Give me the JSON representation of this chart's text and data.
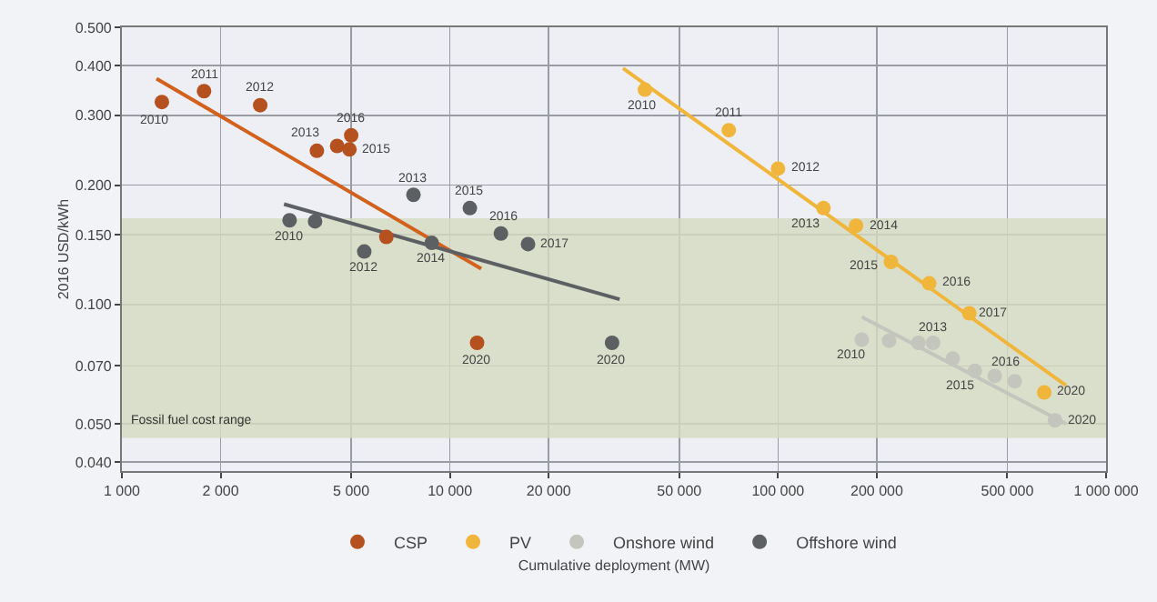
{
  "chart_data": {
    "type": "scatter",
    "xlabel": "Cumulative deployment (MW)",
    "ylabel": "2016 USD/kWh",
    "log": "xy",
    "grid": true,
    "legend": "bottom",
    "marker": "circle",
    "xlim": [
      1000,
      1000000
    ],
    "xticks": [
      {
        "value": 1000,
        "label": "1 000"
      },
      {
        "value": 2000,
        "label": "2 000"
      },
      {
        "value": 5000,
        "label": "5 000"
      },
      {
        "value": 10000,
        "label": "10 000"
      },
      {
        "value": 20000,
        "label": "20 000"
      },
      {
        "value": 50000,
        "label": "50 000"
      },
      {
        "value": 100000,
        "label": "100 000"
      },
      {
        "value": 200000,
        "label": "200 000"
      },
      {
        "value": 500000,
        "label": "500 000"
      },
      {
        "value": 1000000,
        "label": "1 000 000"
      }
    ],
    "ylim": [
      0.038,
      0.5
    ],
    "yticks": [
      {
        "value": 0.04,
        "label": "0.040"
      },
      {
        "value": 0.05,
        "label": "0.050"
      },
      {
        "value": 0.07,
        "label": "0.070"
      },
      {
        "value": 0.1,
        "label": "0.100"
      },
      {
        "value": 0.15,
        "label": "0.150"
      },
      {
        "value": 0.2,
        "label": "0.200"
      },
      {
        "value": 0.3,
        "label": "0.300"
      },
      {
        "value": 0.4,
        "label": "0.400"
      },
      {
        "value": 0.5,
        "label": "0.500"
      }
    ],
    "bands": [
      {
        "axis": "y",
        "from": 0.046,
        "to": 0.165,
        "label": "Fossil fuel cost range",
        "color": "#d5dcc0"
      }
    ],
    "series": [
      {
        "name": "CSP",
        "color": "#b5501f",
        "x": [
          1324,
          1780,
          2640,
          3930,
          4530,
          4940,
          5000,
          6400,
          12100
        ],
        "values": [
          0.324,
          0.345,
          0.318,
          0.244,
          0.251,
          0.246,
          0.267,
          0.148,
          0.08
        ]
      },
      {
        "name": "PV",
        "color": "#f0b63c",
        "x": [
          39300,
          70800,
          100000,
          137600,
          173000,
          221000,
          289000,
          383000,
          648000
        ],
        "values": [
          0.348,
          0.275,
          0.22,
          0.175,
          0.158,
          0.128,
          0.113,
          0.095,
          0.06
        ]
      },
      {
        "name": "Onshore wind",
        "color": "#c4c5bd",
        "x": [
          180000,
          218000,
          268000,
          297000,
          341000,
          398000,
          458000,
          527000,
          699000
        ],
        "values": [
          0.0815,
          0.081,
          0.08,
          0.08,
          0.073,
          0.068,
          0.066,
          0.064,
          0.051
        ]
      },
      {
        "name": "Offshore wind",
        "color": "#5d6062",
        "x": [
          3245,
          3880,
          5480,
          7740,
          8800,
          11500,
          14300,
          17300,
          31200
        ],
        "values": [
          0.163,
          0.162,
          0.136,
          0.189,
          0.143,
          0.175,
          0.151,
          0.142,
          0.08
        ]
      },
      {
        "type": "line",
        "marker": "none",
        "color": "#d2611e",
        "x": [
          1275,
          12450
        ],
        "values": [
          0.371,
          0.123
        ]
      },
      {
        "type": "line",
        "marker": "none",
        "color": "#f0b63c",
        "x": [
          33700,
          755000
        ],
        "values": [
          0.394,
          0.0625
        ]
      },
      {
        "type": "line",
        "marker": "none",
        "color": "#c4c5bd",
        "x": [
          180000,
          755000
        ],
        "values": [
          0.093,
          0.05
        ]
      },
      {
        "type": "line",
        "marker": "none",
        "color": "#5d6062",
        "x": [
          3120,
          32900
        ],
        "values": [
          0.179,
          0.103
        ]
      }
    ],
    "annotations": [
      {
        "text": "2010",
        "x": 1324,
        "y": 0.324
      },
      {
        "text": "2011",
        "x": 1780,
        "y": 0.345
      },
      {
        "text": "2012",
        "x": 2640,
        "y": 0.318
      },
      {
        "text": "2013",
        "x": 3930,
        "y": 0.244
      },
      {
        "text": "2015",
        "x": 4940,
        "y": 0.246
      },
      {
        "text": "2016",
        "x": 5000,
        "y": 0.267
      },
      {
        "text": "2020",
        "x": 12100,
        "y": 0.08
      },
      {
        "text": "2010",
        "x": 3245,
        "y": 0.163
      },
      {
        "text": "2012",
        "x": 5480,
        "y": 0.136
      },
      {
        "text": "2013",
        "x": 7740,
        "y": 0.189
      },
      {
        "text": "2014",
        "x": 8800,
        "y": 0.143
      },
      {
        "text": "2015",
        "x": 11500,
        "y": 0.175
      },
      {
        "text": "2016",
        "x": 14300,
        "y": 0.151
      },
      {
        "text": "2017",
        "x": 17300,
        "y": 0.142
      },
      {
        "text": "2020",
        "x": 31200,
        "y": 0.08
      },
      {
        "text": "2010",
        "x": 39300,
        "y": 0.348
      },
      {
        "text": "2011",
        "x": 70800,
        "y": 0.275
      },
      {
        "text": "2012",
        "x": 100000,
        "y": 0.22
      },
      {
        "text": "2013",
        "x": 137600,
        "y": 0.175
      },
      {
        "text": "2014",
        "x": 173000,
        "y": 0.158
      },
      {
        "text": "2015",
        "x": 221000,
        "y": 0.128
      },
      {
        "text": "2016",
        "x": 289000,
        "y": 0.113
      },
      {
        "text": "2017",
        "x": 383000,
        "y": 0.095
      },
      {
        "text": "2020",
        "x": 648000,
        "y": 0.06
      },
      {
        "text": "2010",
        "x": 180000,
        "y": 0.0815
      },
      {
        "text": "2013",
        "x": 297000,
        "y": 0.08
      },
      {
        "text": "2015",
        "x": 398000,
        "y": 0.068
      },
      {
        "text": "2016",
        "x": 458000,
        "y": 0.066
      },
      {
        "text": "2020",
        "x": 699000,
        "y": 0.051
      }
    ]
  }
}
